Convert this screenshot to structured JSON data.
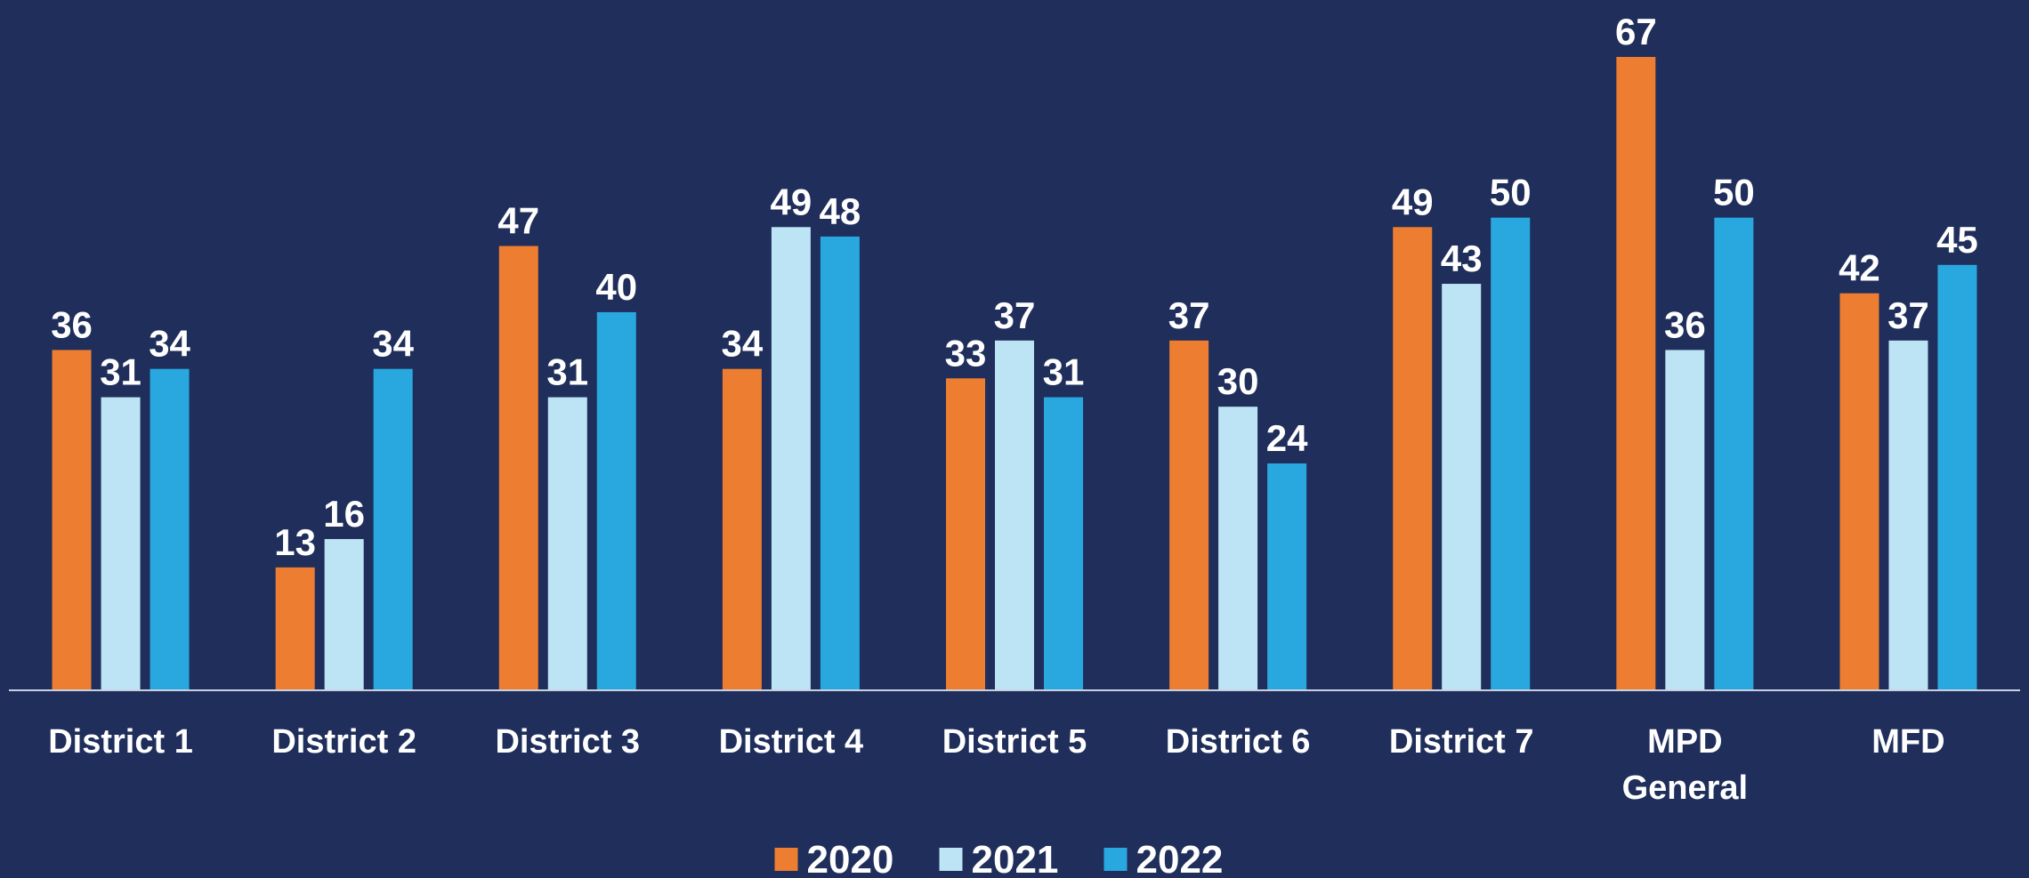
{
  "chart_data": {
    "type": "bar",
    "categories": [
      "District 1",
      "District 2",
      "District 3",
      "District 4",
      "District 5",
      "District 6",
      "District 7",
      "MPD\nGeneral",
      "MFD"
    ],
    "series": [
      {
        "name": "2020",
        "color": "#ed7d31",
        "values": [
          36,
          13,
          47,
          34,
          33,
          37,
          49,
          67,
          42
        ]
      },
      {
        "name": "2021",
        "color": "#bde4f5",
        "values": [
          31,
          16,
          31,
          49,
          37,
          30,
          43,
          36,
          37
        ]
      },
      {
        "name": "2022",
        "color": "#29a8e0",
        "values": [
          34,
          34,
          40,
          48,
          31,
          24,
          50,
          50,
          45
        ]
      }
    ],
    "legend": "bottom"
  }
}
